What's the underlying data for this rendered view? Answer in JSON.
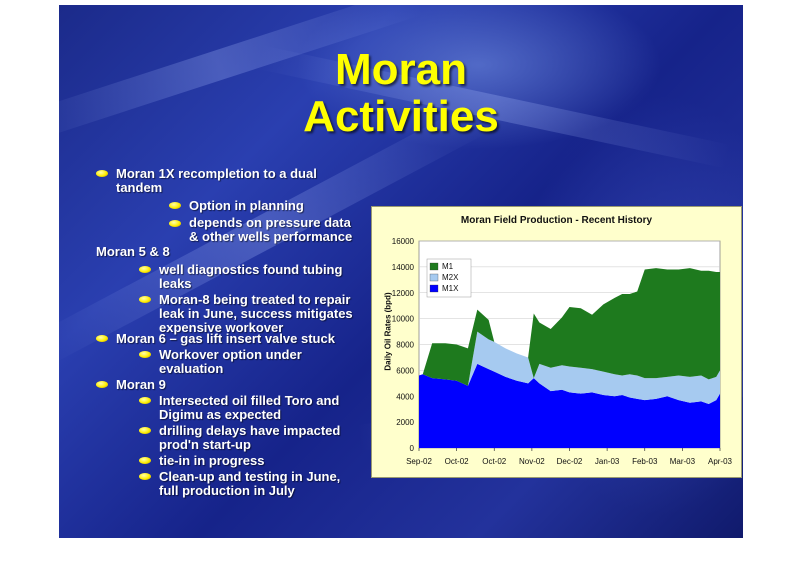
{
  "slide": {
    "title_line1": "Moran",
    "title_line2": "Activities",
    "colors": {
      "background": "#1b2a8a",
      "title": "#ffff00",
      "bullet": "#ffee00",
      "text": "#ffffff"
    }
  },
  "bullets": {
    "b1": {
      "line1": "Moran 1X recompletion to a dual",
      "line2": "tandem"
    },
    "b1a": {
      "line1": "Option in planning"
    },
    "b1b": {
      "line1": "depends on pressure data",
      "line2": "& other wells performance"
    },
    "h1": {
      "line1": "Moran 5 & 8"
    },
    "b2a": {
      "line1": "well diagnostics found tubing",
      "line2": "leaks"
    },
    "b2b": {
      "line1": "Moran-8 being treated to repair",
      "line2": "leak in June, success mitigates",
      "line3": "expensive workover"
    },
    "b3": {
      "line1": "Moran 6 – gas lift insert valve stuck"
    },
    "b3a": {
      "line1": "Workover option under",
      "line2": "evaluation"
    },
    "b4": {
      "line1": "Moran 9"
    },
    "b4a": {
      "line1": "Intersected oil filled Toro and",
      "line2": "Digimu as expected"
    },
    "b4b": {
      "line1": "drilling delays have impacted",
      "line2": "prod'n start-up"
    },
    "b4c": {
      "line1": "tie-in in progress"
    },
    "b4d": {
      "line1": "Clean-up and testing in June,",
      "line2": "full production in July"
    }
  },
  "chart_data": {
    "type": "area",
    "stacked": true,
    "title": "Moran Field Production - Recent History",
    "ylabel": "Daily Oil Rates (bpd)",
    "xlabel": "",
    "ylim": [
      0,
      16000
    ],
    "yticks": [
      0,
      2000,
      4000,
      6000,
      8000,
      10000,
      12000,
      14000,
      16000
    ],
    "xticks": [
      "Sep-02",
      "Oct-02",
      "Oct-02",
      "Nov-02",
      "Dec-02",
      "Jan-03",
      "Feb-03",
      "Mar-03",
      "Apr-03"
    ],
    "xticks_pos": [
      0,
      1,
      2,
      3,
      4,
      5,
      6,
      7,
      8
    ],
    "legend_position": "top-left",
    "x": [
      0.0,
      0.1,
      0.35,
      0.7,
      1.0,
      1.3,
      1.55,
      1.7,
      1.85,
      2.0,
      2.3,
      2.6,
      2.9,
      3.05,
      3.2,
      3.5,
      3.8,
      4.0,
      4.3,
      4.6,
      4.9,
      5.2,
      5.4,
      5.6,
      5.8,
      6.0,
      6.3,
      6.6,
      6.9,
      7.2,
      7.5,
      7.7,
      7.9,
      8.0
    ],
    "series": [
      {
        "name": "M1X",
        "color": "#0000ff",
        "values": [
          5600,
          5700,
          5400,
          5300,
          5200,
          4800,
          6500,
          6300,
          6100,
          5900,
          5500,
          5200,
          5000,
          5400,
          5000,
          4400,
          4500,
          4300,
          4200,
          4300,
          4100,
          4000,
          4100,
          3900,
          3800,
          3700,
          3800,
          4000,
          3700,
          3500,
          3600,
          3400,
          3700,
          4200
        ]
      },
      {
        "name": "M2X",
        "color": "#a6caf0",
        "values": [
          0,
          0,
          0,
          0,
          0,
          0,
          2500,
          2400,
          2300,
          2300,
          2200,
          2100,
          2000,
          0,
          1500,
          1800,
          1900,
          2000,
          2000,
          1800,
          1800,
          1700,
          1500,
          1800,
          1800,
          1700,
          1600,
          1500,
          1900,
          2000,
          2000,
          1900,
          1800,
          1800
        ]
      },
      {
        "name": "M1",
        "color": "#1e7a1e",
        "values": [
          0,
          0,
          2700,
          2800,
          2800,
          2900,
          1700,
          1600,
          1500,
          0,
          0,
          0,
          0,
          5000,
          3200,
          3000,
          3700,
          4600,
          4600,
          4200,
          5200,
          5900,
          6300,
          6200,
          6500,
          8400,
          8500,
          8300,
          8200,
          8400,
          8100,
          8400,
          8100,
          7600
        ]
      }
    ]
  }
}
